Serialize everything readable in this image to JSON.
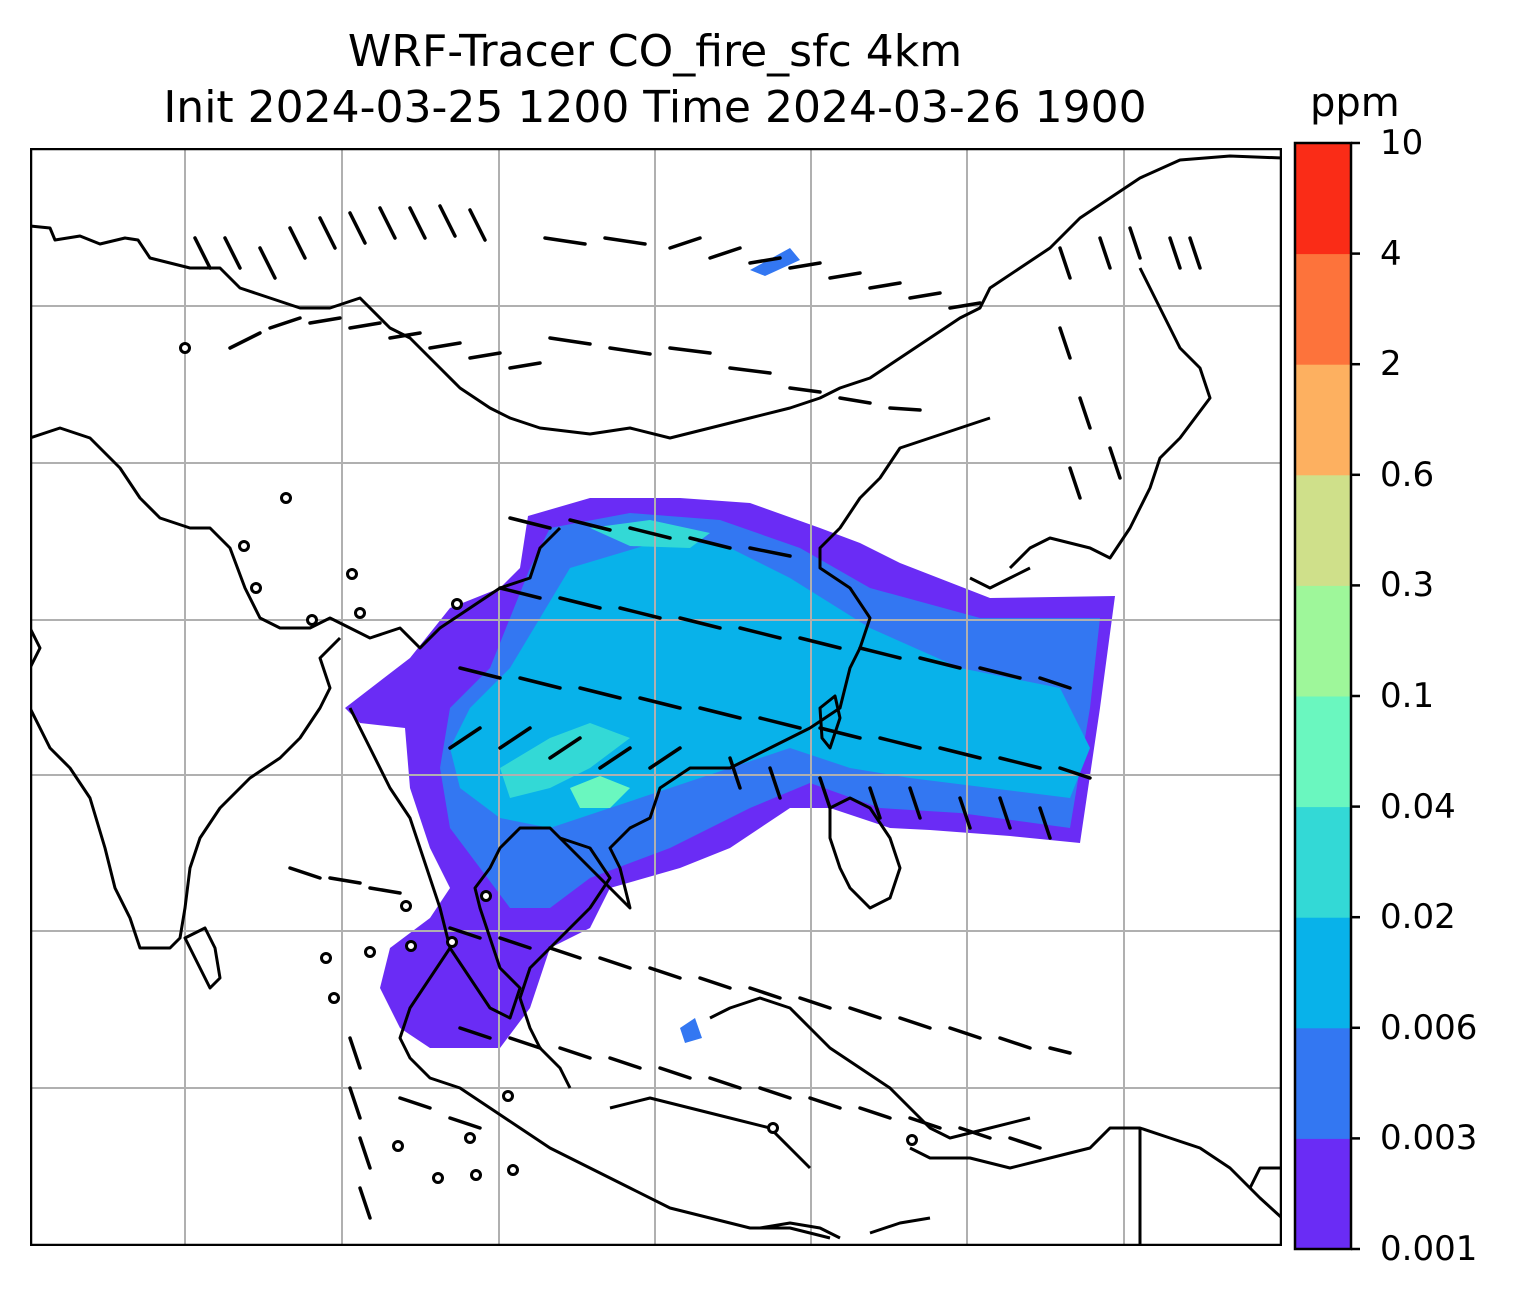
{
  "title": {
    "line1": "WRF-Tracer CO_fire_sfc 4km",
    "line2": "Init 2024-03-25 1200 Time 2024-03-26 1900"
  },
  "colorbar": {
    "unit": "ppm",
    "levels": [
      "0.001",
      "0.003",
      "0.006",
      "0.02",
      "0.04",
      "0.1",
      "0.3",
      "0.6",
      "2",
      "4",
      "10"
    ],
    "colors": [
      "#6a2cf5",
      "#3377f2",
      "#08b2ea",
      "#33d9d6",
      "#6af7bf",
      "#9ef79a",
      "#cfe08a",
      "#fdb060",
      "#fd733b",
      "#fa2c17"
    ]
  },
  "map": {
    "gridlines": true,
    "coastline_color": "#000000",
    "grid_color": "#b0b0b0"
  }
}
